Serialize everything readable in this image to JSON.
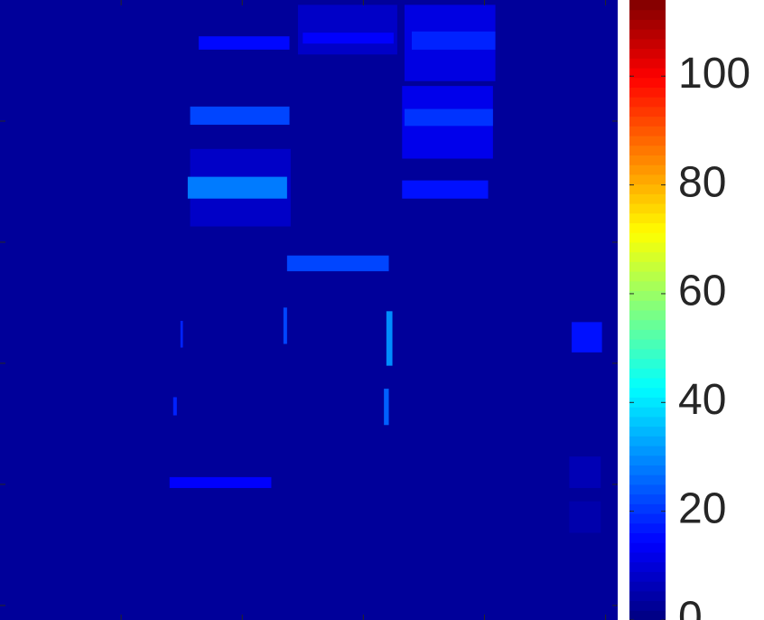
{
  "chart_data": {
    "type": "heatmap",
    "colormap": "jet",
    "xlim": [
      0,
      5.1
    ],
    "ylim": [
      0,
      5.12
    ],
    "xticks": [
      1,
      2,
      3,
      4,
      5
    ],
    "yticks": [
      1,
      2,
      3,
      4,
      5
    ],
    "clim": [
      0,
      114
    ],
    "cticks": [
      0,
      20,
      40,
      60,
      80,
      100
    ],
    "regions": [
      {
        "x0": 0,
        "x1": 5.1,
        "y0": 0,
        "y1": 5.12,
        "value": 3
      },
      {
        "x0": 1.57,
        "x1": 2.4,
        "y0": 1.23,
        "y1": 1.87,
        "value": 8
      },
      {
        "x0": 1.64,
        "x1": 2.39,
        "y0": 0.3,
        "y1": 0.41,
        "value": 15
      },
      {
        "x0": 1.57,
        "x1": 2.39,
        "y0": 0.88,
        "y1": 1.03,
        "value": 22
      },
      {
        "x0": 1.55,
        "x1": 2.37,
        "y0": 1.46,
        "y1": 1.64,
        "value": 28
      },
      {
        "x0": 2.46,
        "x1": 3.28,
        "y0": 0.04,
        "y1": 0.45,
        "value": 8
      },
      {
        "x0": 2.5,
        "x1": 3.25,
        "y0": 0.27,
        "y1": 0.36,
        "value": 14
      },
      {
        "x0": 3.34,
        "x1": 4.09,
        "y0": 0.04,
        "y1": 0.67,
        "value": 11
      },
      {
        "x0": 3.4,
        "x1": 4.09,
        "y0": 0.26,
        "y1": 0.41,
        "value": 18
      },
      {
        "x0": 3.32,
        "x1": 4.07,
        "y0": 0.71,
        "y1": 1.31,
        "value": 12
      },
      {
        "x0": 3.34,
        "x1": 4.07,
        "y0": 0.9,
        "y1": 1.04,
        "value": 20
      },
      {
        "x0": 3.32,
        "x1": 4.03,
        "y0": 1.49,
        "y1": 1.64,
        "value": 16
      },
      {
        "x0": 2.37,
        "x1": 3.21,
        "y0": 2.11,
        "y1": 2.24,
        "value": 22
      },
      {
        "x0": 4.72,
        "x1": 4.97,
        "y0": 2.66,
        "y1": 2.91,
        "value": 16
      },
      {
        "x0": 1.4,
        "x1": 2.24,
        "y0": 3.94,
        "y1": 4.03,
        "value": 14
      },
      {
        "x0": 3.19,
        "x1": 3.24,
        "y0": 2.57,
        "y1": 3.02,
        "value": 30
      },
      {
        "x0": 2.34,
        "x1": 2.37,
        "y0": 2.54,
        "y1": 2.84,
        "value": 22
      },
      {
        "x0": 1.49,
        "x1": 1.51,
        "y0": 2.65,
        "y1": 2.87,
        "value": 18
      },
      {
        "x0": 3.17,
        "x1": 3.21,
        "y0": 3.21,
        "y1": 3.51,
        "value": 25
      },
      {
        "x0": 1.43,
        "x1": 1.46,
        "y0": 3.28,
        "y1": 3.43,
        "value": 18
      },
      {
        "x0": 4.7,
        "x1": 4.96,
        "y0": 3.77,
        "y1": 4.03,
        "value": 6
      },
      {
        "x0": 4.7,
        "x1": 4.96,
        "y0": 4.14,
        "y1": 4.4,
        "value": 5
      }
    ]
  }
}
